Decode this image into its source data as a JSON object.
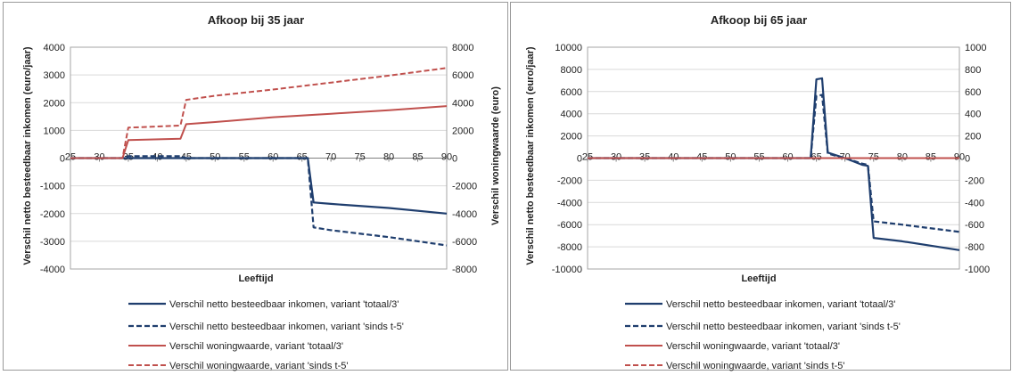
{
  "chart_data": [
    {
      "type": "line",
      "title": "Afkoop bij 35 jaar",
      "xlabel": "Leeftijd",
      "ylabel_left": "Verschil netto besteedbaar inkomen (euro/jaar)",
      "ylabel_right": "Verschil woningwaarde (euro)",
      "xlim": [
        25,
        90
      ],
      "xticks": [
        25,
        30,
        35,
        40,
        45,
        50,
        55,
        60,
        65,
        70,
        75,
        80,
        85,
        90
      ],
      "ylim_left": [
        -4000,
        4000
      ],
      "yticks_left": [
        4000,
        3000,
        2000,
        1000,
        0,
        -1000,
        -2000,
        -3000,
        -4000
      ],
      "ylim_right": [
        -8000,
        8000
      ],
      "yticks_right": [
        8000,
        6000,
        4000,
        2000,
        0,
        -2000,
        -4000,
        -6000,
        -8000
      ],
      "grid": true,
      "legend_position": "bottom",
      "series": [
        {
          "name": "Verschil netto besteedbaar inkomen, variant 'totaal/3'",
          "axis": "left",
          "color": "#1f3e6e",
          "dash": "solid",
          "x": [
            25,
            34,
            35,
            45,
            65,
            66,
            67,
            70,
            80,
            90
          ],
          "y": [
            0,
            0,
            0,
            0,
            0,
            0,
            -1600,
            -1650,
            -1800,
            -2000
          ]
        },
        {
          "name": "Verschil netto besteedbaar inkomen, variant 'sinds t-5'",
          "axis": "left",
          "color": "#1f3e6e",
          "dash": "dashed",
          "x": [
            25,
            34,
            35,
            44,
            45,
            65,
            66,
            67,
            70,
            80,
            90
          ],
          "y": [
            0,
            0,
            70,
            70,
            0,
            0,
            0,
            -2500,
            -2600,
            -2850,
            -3150
          ]
        },
        {
          "name": "Verschil woningwaarde, variant 'totaal/3'",
          "axis": "right",
          "color": "#c0504d",
          "dash": "solid",
          "x": [
            25,
            34,
            35,
            44,
            45,
            50,
            60,
            70,
            80,
            90
          ],
          "y": [
            0,
            0,
            1300,
            1400,
            2450,
            2600,
            2950,
            3200,
            3450,
            3750
          ]
        },
        {
          "name": "Verschil woningwaarde, variant 'sinds t-5'",
          "axis": "right",
          "color": "#c0504d",
          "dash": "dashed",
          "x": [
            25,
            34,
            35,
            44,
            45,
            50,
            60,
            70,
            80,
            90
          ],
          "y": [
            0,
            0,
            2200,
            2350,
            4200,
            4500,
            4950,
            5450,
            5950,
            6500
          ]
        }
      ]
    },
    {
      "type": "line",
      "title": "Afkoop bij 65 jaar",
      "xlabel": "Leeftijd",
      "ylabel_left": "Verschil netto besteedbaar inkomen (euro/jaar)",
      "ylabel_right": "",
      "xlim": [
        25,
        90
      ],
      "xticks": [
        25,
        30,
        35,
        40,
        45,
        50,
        55,
        60,
        65,
        70,
        75,
        80,
        85,
        90
      ],
      "ylim_left": [
        -10000,
        10000
      ],
      "yticks_left": [
        10000,
        8000,
        6000,
        4000,
        2000,
        0,
        -2000,
        -4000,
        -6000,
        -8000,
        -10000
      ],
      "ylim_right": [
        -1000,
        1000
      ],
      "yticks_right": [
        1000,
        800,
        600,
        400,
        200,
        0,
        -200,
        -400,
        -600,
        -800,
        -1000
      ],
      "grid": true,
      "legend_position": "bottom",
      "series": [
        {
          "name": "Verschil netto besteedbaar inkomen, variant 'totaal/3'",
          "axis": "left",
          "color": "#1f3e6e",
          "dash": "solid",
          "x": [
            25,
            64,
            65,
            66,
            67,
            70,
            73,
            74,
            75,
            80,
            90
          ],
          "y": [
            0,
            0,
            7100,
            7200,
            500,
            0,
            -600,
            -700,
            -7200,
            -7500,
            -8300
          ]
        },
        {
          "name": "Verschil netto besteedbaar inkomen, variant 'sinds t-5'",
          "axis": "left",
          "color": "#1f3e6e",
          "dash": "dashed",
          "x": [
            25,
            64,
            65,
            66,
            67,
            70,
            73,
            74,
            75,
            80,
            90
          ],
          "y": [
            0,
            0,
            5600,
            5700,
            400,
            0,
            -500,
            -600,
            -5700,
            -6000,
            -6650
          ]
        },
        {
          "name": "Verschil woningwaarde, variant 'totaal/3'",
          "axis": "right",
          "color": "#c0504d",
          "dash": "solid",
          "x": [
            25,
            90
          ],
          "y": [
            0,
            0
          ]
        },
        {
          "name": "Verschil woningwaarde, variant 'sinds t-5'",
          "axis": "right",
          "color": "#c0504d",
          "dash": "dashed",
          "x": [
            25,
            90
          ],
          "y": [
            0,
            0
          ]
        }
      ]
    }
  ]
}
